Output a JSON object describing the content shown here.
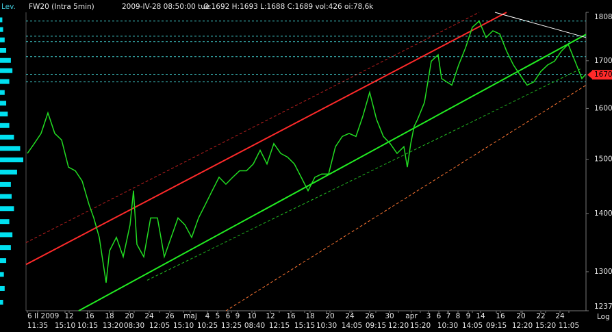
{
  "chart_data": {
    "type": "line",
    "profile_label": "Lev.",
    "title": "FW20 (Intra 5min)",
    "timestamp": "2009-IV-28 08:50:00 tue",
    "quote": "O:1692 H:1693 L:1688 C:1689 vol:426 oi:78,6k",
    "scale_label": "Log",
    "log_scale": true,
    "xlim": [
      0,
      818
    ],
    "ylim": [
      1237,
      1808
    ],
    "yticks": [
      1808,
      1700,
      1600,
      1500,
      1400,
      1300,
      1237
    ],
    "date_ticks": [
      {
        "value": 2,
        "label": "6 II 2009"
      },
      {
        "value": 63,
        "label": "12"
      },
      {
        "value": 93,
        "label": "16"
      },
      {
        "value": 122,
        "label": "18"
      },
      {
        "value": 151,
        "label": "20"
      },
      {
        "value": 180,
        "label": "24"
      },
      {
        "value": 210,
        "label": "26"
      },
      {
        "value": 240,
        "label": "maj"
      },
      {
        "value": 265,
        "label": "4"
      },
      {
        "value": 280,
        "label": "5"
      },
      {
        "value": 295,
        "label": "6"
      },
      {
        "value": 309,
        "label": "9"
      },
      {
        "value": 330,
        "label": "10"
      },
      {
        "value": 357,
        "label": "12"
      },
      {
        "value": 387,
        "label": "16"
      },
      {
        "value": 415,
        "label": "18"
      },
      {
        "value": 444,
        "label": "20"
      },
      {
        "value": 473,
        "label": "24"
      },
      {
        "value": 502,
        "label": "26"
      },
      {
        "value": 531,
        "label": "30"
      },
      {
        "value": 563,
        "label": "apr"
      },
      {
        "value": 588,
        "label": "3"
      },
      {
        "value": 603,
        "label": "6"
      },
      {
        "value": 617,
        "label": "7"
      },
      {
        "value": 631,
        "label": "8"
      },
      {
        "value": 646,
        "label": "9"
      },
      {
        "value": 664,
        "label": "14"
      },
      {
        "value": 693,
        "label": "16"
      },
      {
        "value": 723,
        "label": "20"
      },
      {
        "value": 752,
        "label": "22"
      },
      {
        "value": 780,
        "label": "24"
      }
    ],
    "time_ticks": [
      {
        "value": 17,
        "label": "11:35"
      },
      {
        "value": 57,
        "label": "15:10"
      },
      {
        "value": 90,
        "label": "10:15"
      },
      {
        "value": 127,
        "label": "13:20"
      },
      {
        "value": 158,
        "label": "08:30"
      },
      {
        "value": 195,
        "label": "12:05"
      },
      {
        "value": 230,
        "label": "15:10"
      },
      {
        "value": 265,
        "label": "10:25"
      },
      {
        "value": 300,
        "label": "13:25"
      },
      {
        "value": 334,
        "label": "08:40"
      },
      {
        "value": 370,
        "label": "12:15"
      },
      {
        "value": 407,
        "label": "15:15"
      },
      {
        "value": 439,
        "label": "10:30"
      },
      {
        "value": 476,
        "label": "14:05"
      },
      {
        "value": 511,
        "label": "09:15"
      },
      {
        "value": 544,
        "label": "12:20"
      },
      {
        "value": 576,
        "label": "15:20"
      },
      {
        "value": 616,
        "label": "10:30"
      },
      {
        "value": 652,
        "label": "14:05"
      },
      {
        "value": 687,
        "label": "09:15"
      },
      {
        "value": 725,
        "label": "12:20"
      },
      {
        "value": 759,
        "label": "15:20"
      },
      {
        "value": 793,
        "label": "11:05"
      }
    ],
    "series": [
      {
        "name": "FW20",
        "color": "#22dd22",
        "x": [
          2,
          12,
          22,
          32,
          42,
          52,
          62,
          72,
          82,
          92,
          99,
          107,
          117,
          122,
          132,
          142,
          152,
          157,
          162,
          172,
          182,
          192,
          202,
          212,
          222,
          232,
          242,
          252,
          262,
          272,
          282,
          292,
          302,
          312,
          322,
          332,
          342,
          352,
          362,
          372,
          382,
          392,
          402,
          412,
          422,
          432,
          442,
          452,
          462,
          472,
          482,
          492,
          502,
          512,
          522,
          532,
          542,
          552,
          557,
          562,
          567,
          572,
          582,
          592,
          602,
          607,
          622,
          632,
          642,
          652,
          662,
          672,
          682,
          692,
          702,
          712,
          722,
          732,
          742,
          752,
          762,
          772,
          782,
          792,
          802,
          812,
          817
        ],
        "values": [
          1511,
          1530,
          1550,
          1591,
          1550,
          1537,
          1485,
          1478,
          1459,
          1416,
          1392,
          1358,
          1282,
          1335,
          1358,
          1325,
          1380,
          1441,
          1346,
          1325,
          1392,
          1392,
          1325,
          1358,
          1392,
          1380,
          1358,
          1392,
          1416,
          1441,
          1466,
          1453,
          1466,
          1478,
          1478,
          1491,
          1517,
          1491,
          1530,
          1511,
          1504,
          1491,
          1466,
          1441,
          1466,
          1472,
          1472,
          1524,
          1544,
          1550,
          1544,
          1584,
          1633,
          1578,
          1544,
          1530,
          1511,
          1524,
          1485,
          1530,
          1564,
          1578,
          1612,
          1699,
          1713,
          1662,
          1648,
          1691,
          1728,
          1774,
          1788,
          1751,
          1766,
          1759,
          1721,
          1691,
          1669,
          1648,
          1655,
          1677,
          1691,
          1699,
          1721,
          1736,
          1699,
          1662,
          1670
        ]
      }
    ],
    "trend_lines": [
      {
        "color": "#ff2a2a",
        "width": 2,
        "dashed": false,
        "x": [
          0,
          702
        ],
        "values": [
          1312,
          1808
        ]
      },
      {
        "color": "#cc2222",
        "width": 1,
        "dashed": true,
        "x": [
          0,
          662
        ],
        "values": [
          1349,
          1808
        ]
      },
      {
        "color": "#22ee22",
        "width": 2,
        "dashed": false,
        "x": [
          77,
          818
        ],
        "values": [
          1237,
          1758
        ]
      },
      {
        "color": "#22bb22",
        "width": 1,
        "dashed": true,
        "x": [
          177,
          812
        ],
        "values": [
          1286,
          1684
        ]
      },
      {
        "color": "#ff7733",
        "width": 1,
        "dashed": true,
        "x": [
          292,
          818
        ],
        "values": [
          1237,
          1648
        ]
      },
      {
        "color": "#ffffff",
        "width": 1,
        "dashed": false,
        "x": [
          685,
          818
        ],
        "values": [
          1808,
          1751
        ]
      }
    ],
    "levels": {
      "color": "#3fc7c7",
      "values": [
        1788,
        1754,
        1742,
        1709,
        1671,
        1655
      ]
    },
    "last_price": {
      "value": 1670,
      "color": "#ff2a2a"
    },
    "volume_profile": {
      "color": "#00e0f0",
      "prices": [
        1250,
        1272,
        1295,
        1318,
        1340,
        1362,
        1385,
        1408,
        1430,
        1452,
        1475,
        1498,
        1520,
        1542,
        1565,
        1588,
        1610,
        1632,
        1655,
        1678,
        1700,
        1722,
        1745,
        1768,
        1790
      ],
      "values": [
        4,
        6,
        5,
        8,
        14,
        16,
        12,
        18,
        15,
        14,
        22,
        30,
        26,
        18,
        12,
        10,
        8,
        6,
        12,
        16,
        14,
        8,
        6,
        4,
        3
      ]
    }
  }
}
